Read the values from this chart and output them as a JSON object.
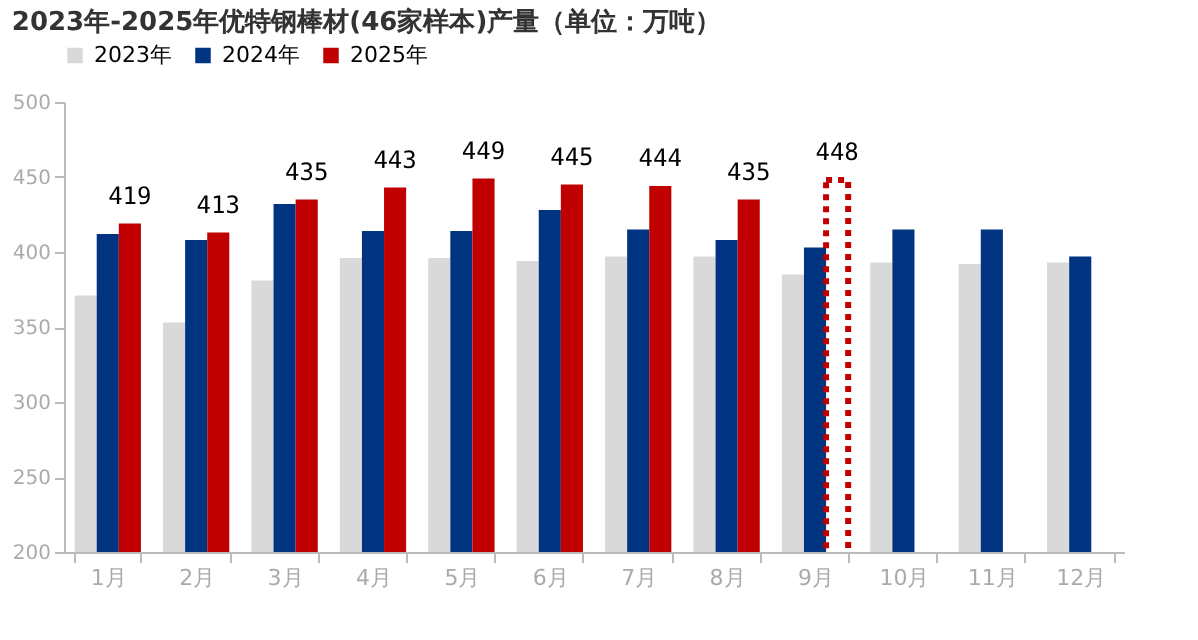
{
  "chart_data": {
    "type": "bar",
    "title": "2023年-2025年优特钢棒材(46家样本)产量（单位：万吨）",
    "categories": [
      "1月",
      "2月",
      "3月",
      "4月",
      "5月",
      "6月",
      "7月",
      "8月",
      "9月",
      "10月",
      "11月",
      "12月"
    ],
    "series": [
      {
        "name": "2023年",
        "color": "#d9d9d9",
        "values": [
          371,
          353,
          381,
          396,
          396,
          394,
          397,
          397,
          385,
          393,
          392,
          393
        ]
      },
      {
        "name": "2024年",
        "color": "#003380",
        "values": [
          412,
          408,
          432,
          414,
          414,
          428,
          415,
          408,
          403,
          415,
          415,
          397
        ]
      },
      {
        "name": "2025年",
        "color": "#c00000",
        "values": [
          419,
          413,
          435,
          443,
          449,
          445,
          444,
          435,
          null,
          null,
          null,
          null
        ],
        "value_labels": [
          "419",
          "413",
          "435",
          "443",
          "449",
          "445",
          "444",
          "435",
          null,
          null,
          null,
          null
        ]
      },
      {
        "color": "#c00000",
        "line_style": "dotted",
        "values": [
          null,
          null,
          null,
          null,
          null,
          null,
          null,
          null,
          448,
          null,
          null,
          null
        ],
        "value_labels": [
          null,
          null,
          null,
          null,
          null,
          null,
          null,
          null,
          "448",
          null,
          null,
          null
        ]
      }
    ],
    "ylim": [
      200,
      500
    ],
    "yticks": [
      200,
      250,
      300,
      350,
      400,
      450,
      500
    ],
    "grid": false,
    "legend": "top"
  }
}
